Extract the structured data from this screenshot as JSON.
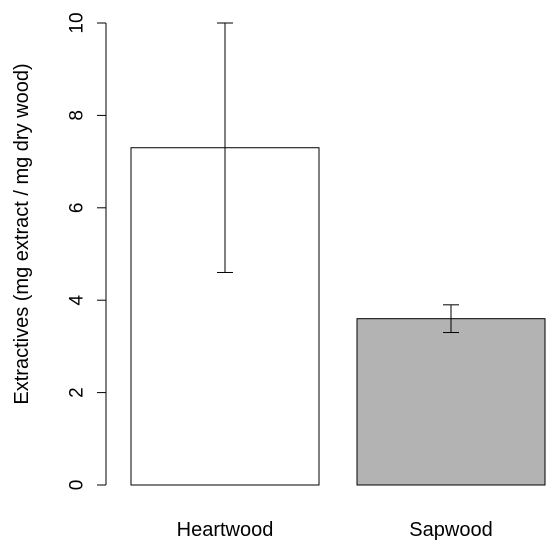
{
  "chart_data": {
    "type": "bar",
    "title": "",
    "xlabel": "",
    "ylabel": "Extractives (mg extract / mg dry wood)",
    "categories": [
      "Heartwood",
      "Sapwood"
    ],
    "values": [
      7.3,
      3.6
    ],
    "error_low": [
      4.6,
      3.3
    ],
    "error_high": [
      10.0,
      3.9
    ],
    "bar_colors": [
      "#ffffff",
      "#b3b3b3"
    ],
    "ylim": [
      0,
      10
    ],
    "yticks": [
      0,
      2,
      4,
      6,
      8,
      10
    ],
    "ytick_labels": [
      "0",
      "2",
      "4",
      "6",
      "8",
      "10"
    ],
    "grid": false,
    "legend": "none"
  }
}
